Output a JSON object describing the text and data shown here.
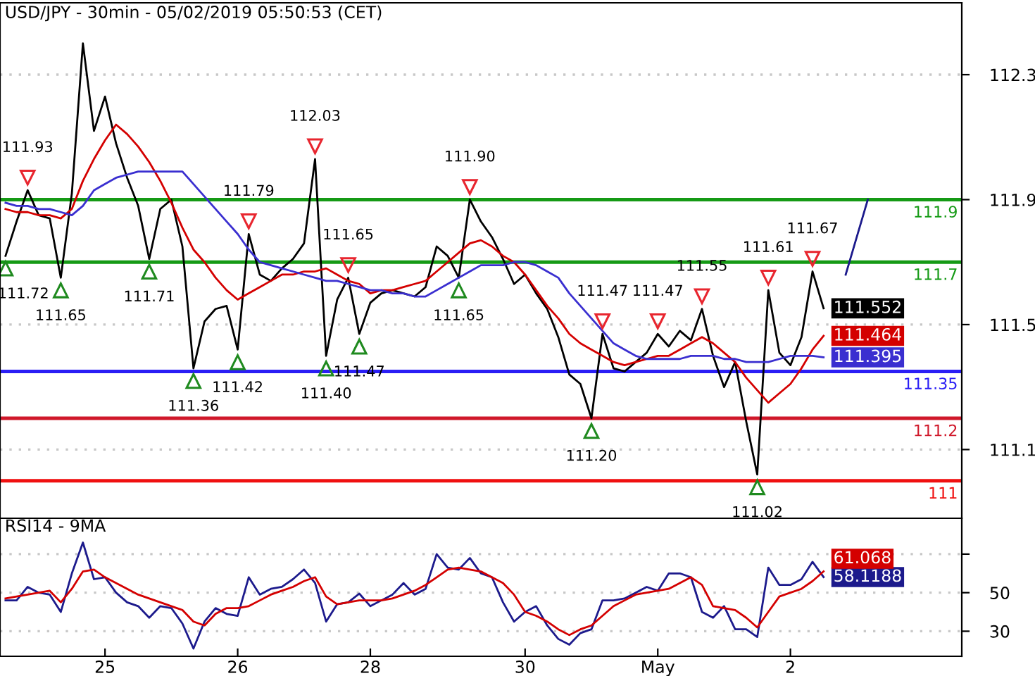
{
  "chart_data": [
    {
      "type": "line",
      "title": "USD/JPY - 30min - 05/02/2019 05:50:53 (CET)",
      "categories": [
        null,
        null,
        null,
        null,
        null,
        null,
        null,
        null,
        null,
        null,
        null,
        null,
        null,
        null,
        null,
        null,
        null,
        null,
        null,
        null,
        null,
        null,
        null,
        null,
        null,
        null,
        null,
        null,
        null,
        null,
        null,
        null,
        null,
        null,
        null,
        null,
        null,
        null,
        null,
        null,
        null,
        null,
        null,
        null,
        null,
        null,
        null,
        null,
        null,
        null,
        null,
        null,
        null,
        null,
        null,
        null,
        null,
        null,
        null,
        null,
        null,
        null,
        null,
        null,
        null,
        null,
        null,
        null,
        null,
        null,
        null,
        null,
        null,
        null,
        null,
        null,
        null,
        null,
        null,
        null,
        null,
        null,
        null,
        null,
        null,
        null,
        null
      ],
      "ylim": [
        110.88,
        112.53
      ],
      "yticks": [
        111.1,
        111.5,
        111.9,
        112.3
      ],
      "grid": "y",
      "series": [
        {
          "color": "#000000",
          "values": [
            111.72,
            111.83,
            111.93,
            111.85,
            111.84,
            111.65,
            111.92,
            112.4,
            112.12,
            112.23,
            112.08,
            111.97,
            111.88,
            111.71,
            111.87,
            111.9,
            111.75,
            111.36,
            111.51,
            111.55,
            111.56,
            111.42,
            111.79,
            111.66,
            111.64,
            111.68,
            111.71,
            111.76,
            112.03,
            111.4,
            111.58,
            111.65,
            111.47,
            111.57,
            111.6,
            111.61,
            111.6,
            111.59,
            111.62,
            111.75,
            111.72,
            111.65,
            111.9,
            111.83,
            111.78,
            111.71,
            111.63,
            111.66,
            111.6,
            111.55,
            111.46,
            111.34,
            111.31,
            111.2,
            111.47,
            111.36,
            111.35,
            111.38,
            111.41,
            111.47,
            111.43,
            111.48,
            111.45,
            111.55,
            111.4,
            111.3,
            111.38,
            111.19,
            111.02,
            111.61,
            111.41,
            111.37,
            111.46,
            111.67,
            111.552,
            null,
            null,
            null,
            null,
            null,
            null,
            null,
            null,
            null,
            null,
            null,
            null
          ],
          "value_labels": [
            null,
            null,
            null,
            null,
            null,
            null,
            null,
            null,
            null,
            null,
            null,
            null,
            null,
            null,
            null,
            null,
            null,
            null,
            null,
            null,
            null,
            null,
            null,
            null,
            null,
            null,
            null,
            null,
            null,
            null,
            null,
            null,
            null,
            null,
            null,
            null,
            null,
            null,
            null,
            null,
            null,
            null,
            null,
            null,
            null,
            null,
            null,
            null,
            null,
            null,
            null,
            null,
            null,
            null,
            null,
            null,
            null,
            null,
            null,
            null,
            null,
            null,
            null,
            null,
            null,
            null,
            null,
            null,
            null,
            null,
            null,
            null,
            null,
            null,
            "111.552",
            null,
            null,
            null,
            null,
            null,
            null,
            null,
            null,
            null,
            null,
            null,
            null
          ]
        },
        {
          "color": "#d40000",
          "values": [
            111.87,
            111.86,
            111.86,
            111.85,
            111.85,
            111.84,
            111.87,
            111.96,
            112.03,
            112.09,
            112.14,
            112.11,
            112.07,
            112.02,
            111.96,
            111.89,
            111.81,
            111.74,
            111.7,
            111.65,
            111.61,
            111.58,
            111.6,
            111.62,
            111.64,
            111.66,
            111.66,
            111.67,
            111.67,
            111.68,
            111.66,
            111.64,
            111.63,
            111.6,
            111.61,
            111.61,
            111.62,
            111.63,
            111.64,
            111.67,
            111.7,
            111.73,
            111.76,
            111.77,
            111.75,
            111.72,
            111.7,
            111.66,
            111.61,
            111.56,
            111.52,
            111.47,
            111.44,
            111.42,
            111.4,
            111.38,
            111.37,
            111.38,
            111.39,
            111.4,
            111.4,
            111.42,
            111.44,
            111.46,
            111.44,
            111.41,
            111.38,
            111.33,
            111.29,
            111.25,
            111.28,
            111.31,
            111.36,
            111.42,
            111.464,
            null,
            null,
            null,
            null,
            null,
            null,
            null,
            null,
            null,
            null,
            null,
            null
          ],
          "value_labels": [
            null,
            null,
            null,
            null,
            null,
            null,
            null,
            null,
            null,
            null,
            null,
            null,
            null,
            null,
            null,
            null,
            null,
            null,
            null,
            null,
            null,
            null,
            null,
            null,
            null,
            null,
            null,
            null,
            null,
            null,
            null,
            null,
            null,
            null,
            null,
            null,
            null,
            null,
            null,
            null,
            null,
            null,
            null,
            null,
            null,
            null,
            null,
            null,
            null,
            null,
            null,
            null,
            null,
            null,
            null,
            null,
            null,
            null,
            null,
            null,
            null,
            null,
            null,
            null,
            null,
            null,
            null,
            null,
            null,
            null,
            null,
            null,
            null,
            null,
            "111.464",
            null,
            null,
            null,
            null,
            null,
            null,
            null,
            null,
            null,
            null,
            null,
            null
          ]
        },
        {
          "color": "#3a2fd0",
          "values": [
            111.89,
            111.88,
            111.88,
            111.87,
            111.87,
            111.86,
            111.85,
            111.88,
            111.93,
            111.95,
            111.97,
            111.98,
            111.99,
            111.99,
            111.99,
            111.99,
            111.99,
            111.95,
            111.91,
            111.87,
            111.83,
            111.79,
            111.74,
            111.7,
            111.69,
            111.68,
            111.67,
            111.66,
            111.65,
            111.64,
            111.64,
            111.63,
            111.62,
            111.61,
            111.61,
            111.6,
            111.6,
            111.59,
            111.59,
            111.61,
            111.63,
            111.65,
            111.67,
            111.69,
            111.69,
            111.69,
            111.7,
            111.7,
            111.69,
            111.67,
            111.65,
            111.6,
            111.56,
            111.52,
            111.48,
            111.44,
            111.42,
            111.4,
            111.39,
            111.39,
            111.39,
            111.39,
            111.4,
            111.4,
            111.4,
            111.39,
            111.39,
            111.38,
            111.38,
            111.38,
            111.39,
            111.4,
            111.4,
            111.4,
            111.395,
            null,
            null,
            null,
            null,
            null,
            null,
            null,
            null,
            null,
            null,
            null,
            null
          ],
          "value_labels": [
            null,
            null,
            null,
            null,
            null,
            null,
            null,
            null,
            null,
            null,
            null,
            null,
            null,
            null,
            null,
            null,
            null,
            null,
            null,
            null,
            null,
            null,
            null,
            null,
            null,
            null,
            null,
            null,
            null,
            null,
            null,
            null,
            null,
            null,
            null,
            null,
            null,
            null,
            null,
            null,
            null,
            null,
            null,
            null,
            null,
            null,
            null,
            null,
            null,
            null,
            null,
            null,
            null,
            null,
            null,
            null,
            null,
            null,
            null,
            null,
            null,
            null,
            null,
            null,
            null,
            null,
            null,
            null,
            null,
            null,
            null,
            null,
            null,
            null,
            "111.395",
            null,
            null,
            null,
            null,
            null,
            null,
            null,
            null,
            null,
            null,
            null,
            null
          ]
        },
        {
          "color": "#1c1a8c",
          "values": [
            null,
            null,
            null,
            null,
            null,
            null,
            null,
            null,
            null,
            null,
            null,
            null,
            null,
            null,
            null,
            null,
            null,
            null,
            null,
            null,
            null,
            null,
            null,
            null,
            null,
            null,
            null,
            null,
            null,
            null,
            null,
            null,
            null,
            null,
            null,
            null,
            null,
            null,
            null,
            null,
            null,
            null,
            null,
            null,
            null,
            null,
            null,
            null,
            null,
            null,
            null,
            null,
            null,
            null,
            null,
            null,
            null,
            null,
            null,
            null,
            null,
            null,
            null,
            null,
            null,
            null,
            null,
            null,
            null,
            null,
            null,
            null,
            null,
            null,
            null,
            null,
            111.66,
            111.78,
            111.9,
            null,
            null,
            null,
            null,
            null,
            null,
            null,
            null
          ]
        }
      ],
      "ref_lines": [
        {
          "axis": "y",
          "value": 111.9,
          "label": "111.9",
          "color": "#159a15"
        },
        {
          "axis": "y",
          "value": 111.7,
          "label": "111.7",
          "color": "#159a15"
        },
        {
          "axis": "y",
          "value": 111.35,
          "label": "111.35",
          "color": "#2a1ef5"
        },
        {
          "axis": "y",
          "value": 111.2,
          "label": "111.2",
          "color": "#d0182a"
        },
        {
          "axis": "y",
          "value": 111.0,
          "label": "111",
          "color": "#f01010"
        }
      ],
      "annotations": [
        {
          "text": "111.72",
          "y": 111.72
        },
        {
          "text": "111.93",
          "y": 111.93
        },
        {
          "text": "111.65",
          "y": 111.65
        },
        {
          "text": "111.71",
          "y": 111.71
        },
        {
          "text": "111.36",
          "y": 111.36
        },
        {
          "text": "111.42",
          "y": 111.42
        },
        {
          "text": "111.79",
          "y": 111.79
        },
        {
          "text": "112.03",
          "y": 112.03
        },
        {
          "text": "111.40",
          "y": 111.4
        },
        {
          "text": "111.65",
          "y": 111.65
        },
        {
          "text": "111.47",
          "y": 111.47
        },
        {
          "text": "111.65",
          "y": 111.65
        },
        {
          "text": "111.90",
          "y": 111.9
        },
        {
          "text": "111.20",
          "y": 111.2
        },
        {
          "text": "111.47",
          "y": 111.47
        },
        {
          "text": "111.47",
          "y": 111.47
        },
        {
          "text": "111.55",
          "y": 111.55
        },
        {
          "text": "111.02",
          "y": 111.02
        },
        {
          "text": "111.61",
          "y": 111.61
        },
        {
          "text": "111.67",
          "y": 111.67
        }
      ]
    },
    {
      "type": "line",
      "title": "RSI14 - 9MA",
      "categories": [
        null,
        null,
        null,
        null,
        null,
        null,
        null,
        null,
        null,
        "25",
        null,
        null,
        null,
        null,
        null,
        null,
        null,
        null,
        null,
        null,
        null,
        "26",
        null,
        null,
        null,
        null,
        null,
        null,
        null,
        null,
        null,
        null,
        null,
        "28",
        null,
        null,
        null,
        null,
        null,
        null,
        null,
        null,
        null,
        null,
        null,
        null,
        null,
        "30",
        null,
        null,
        null,
        null,
        null,
        null,
        null,
        null,
        null,
        null,
        null,
        "May",
        null,
        null,
        null,
        null,
        null,
        null,
        null,
        null,
        null,
        null,
        null,
        "2",
        null,
        null,
        null,
        null,
        null,
        null,
        null,
        null,
        null,
        null,
        null,
        null,
        null,
        null,
        null
      ],
      "ylim": [
        17,
        88.6
      ],
      "yticks": [
        30,
        50,
        {
          "value": 70,
          "label": null
        }
      ],
      "grid": "y",
      "series": [
        {
          "color": "#1c1a8c",
          "values": [
            46,
            46,
            53,
            50,
            49,
            40,
            60,
            76,
            57,
            58,
            50,
            45,
            43,
            37,
            43,
            42,
            34,
            21,
            35,
            42,
            39,
            38,
            58,
            49,
            52,
            53,
            57,
            62,
            55,
            35,
            44,
            45,
            49.5,
            43,
            46,
            49,
            55,
            49,
            52,
            70,
            63,
            62,
            68,
            60,
            58,
            45,
            35,
            40,
            43,
            33,
            26,
            23,
            29,
            31,
            46,
            46,
            47,
            50,
            53,
            51,
            60,
            60,
            58,
            40,
            37,
            43,
            31,
            31,
            27,
            63,
            54,
            54,
            57,
            66,
            58.1188,
            null,
            null,
            null,
            null,
            null,
            null,
            null,
            null,
            null,
            null,
            null,
            null
          ],
          "value_labels": [
            null,
            null,
            null,
            null,
            null,
            null,
            null,
            null,
            null,
            null,
            null,
            null,
            null,
            null,
            null,
            null,
            null,
            null,
            null,
            null,
            null,
            null,
            null,
            null,
            null,
            null,
            null,
            null,
            null,
            null,
            null,
            null,
            null,
            null,
            null,
            null,
            null,
            null,
            null,
            null,
            null,
            null,
            null,
            null,
            null,
            null,
            null,
            null,
            null,
            null,
            null,
            null,
            null,
            null,
            null,
            null,
            null,
            null,
            null,
            null,
            null,
            null,
            null,
            null,
            null,
            null,
            null,
            null,
            null,
            null,
            null,
            null,
            null,
            null,
            "58.1188",
            null,
            null,
            null,
            null,
            null,
            null,
            null,
            null,
            null,
            null,
            null,
            null
          ]
        },
        {
          "color": "#d40000",
          "values": [
            47,
            48,
            49,
            50,
            51,
            45,
            52,
            61,
            62,
            58,
            55,
            52,
            49,
            47,
            45,
            43,
            41,
            35,
            33,
            39,
            42,
            42,
            43,
            46,
            49,
            51,
            53,
            56,
            58,
            48,
            44,
            45,
            46,
            46,
            46,
            47,
            49,
            51,
            54,
            58,
            62,
            63,
            62,
            61,
            58,
            55,
            49,
            40,
            38,
            35,
            31,
            28,
            31,
            33,
            38,
            43,
            46,
            49,
            50,
            51,
            52,
            55,
            58,
            54,
            43,
            42,
            41,
            37,
            32,
            40,
            48,
            50,
            52,
            56,
            61.068,
            null,
            null,
            null,
            null,
            null,
            null,
            null,
            null,
            null,
            null,
            null,
            null
          ],
          "value_labels": [
            null,
            null,
            null,
            null,
            null,
            null,
            null,
            null,
            null,
            null,
            null,
            null,
            null,
            null,
            null,
            null,
            null,
            null,
            null,
            null,
            null,
            null,
            null,
            null,
            null,
            null,
            null,
            null,
            null,
            null,
            null,
            null,
            null,
            null,
            null,
            null,
            null,
            null,
            null,
            null,
            null,
            null,
            null,
            null,
            null,
            null,
            null,
            null,
            null,
            null,
            null,
            null,
            null,
            null,
            null,
            null,
            null,
            null,
            null,
            null,
            null,
            null,
            null,
            null,
            null,
            null,
            null,
            null,
            null,
            null,
            null,
            null,
            null,
            null,
            "61.068",
            null,
            null,
            null,
            null,
            null,
            null,
            null,
            null,
            null,
            null,
            null,
            null
          ]
        }
      ]
    }
  ]
}
